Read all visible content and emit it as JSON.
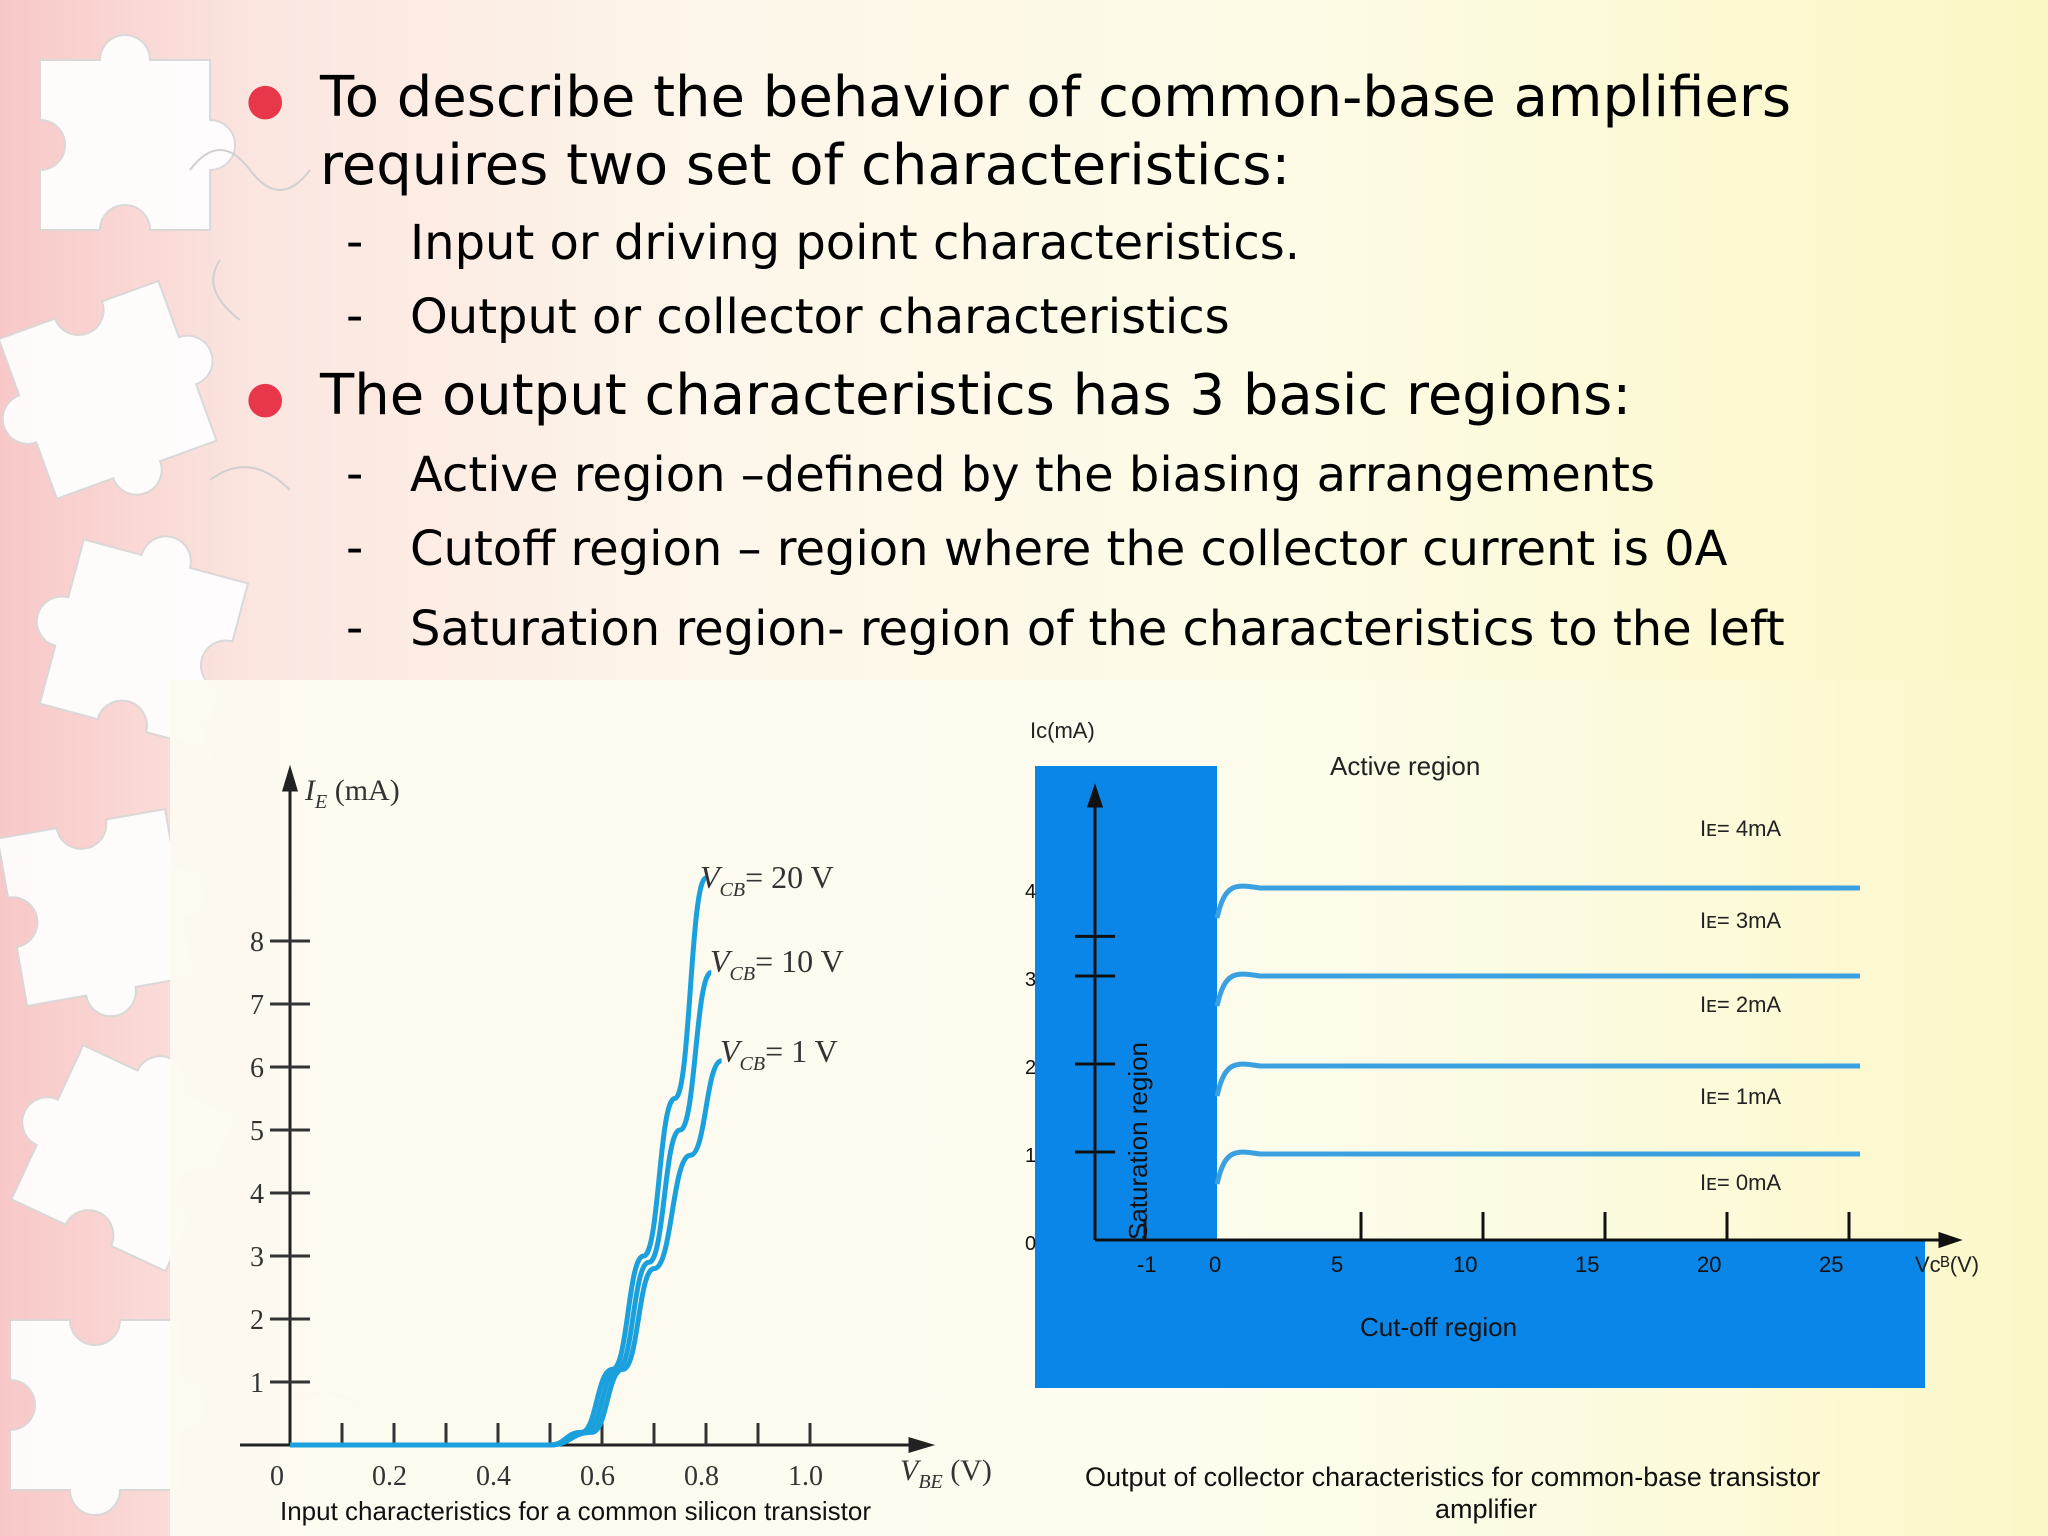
{
  "bullets": [
    {
      "text_line1": "To describe the behavior of common-base amplifiers",
      "text_line2": "requires two set of characteristics:",
      "subs": [
        "Input or driving point characteristics.",
        "Output or collector characteristics"
      ]
    },
    {
      "text_line1": "The output characteristics has 3 basic regions:",
      "subs": [
        "Active region –defined by the biasing arrangements",
        "Cutoff region – region where the collector current is 0A",
        "Saturation region- region of the characteristics to the left"
      ]
    }
  ],
  "colors": {
    "bullet": "#e8364a",
    "curve": "#1aa0dc",
    "region": "#0a86e8",
    "region_line": "#3aa0e0"
  },
  "chart_data": [
    {
      "type": "line",
      "ylabel": "I_E (mA)",
      "xlabel": "V_BE (V)",
      "x_ticks": [
        "0",
        "0.2",
        "0.4",
        "0.6",
        "0.8",
        "1.0"
      ],
      "y_ticks": [
        "1",
        "2",
        "3",
        "4",
        "5",
        "6",
        "7",
        "8"
      ],
      "xlim": [
        0,
        1.2
      ],
      "ylim": [
        0,
        9
      ],
      "series": [
        {
          "name": "V_CB = 20 V",
          "label_main": "V",
          "label_sub": "CB",
          "label_rest": "= 20 V",
          "points": [
            [
              0,
              0
            ],
            [
              0.5,
              0
            ],
            [
              0.56,
              0.2
            ],
            [
              0.62,
              1.2
            ],
            [
              0.68,
              3.0
            ],
            [
              0.74,
              5.5
            ],
            [
              0.8,
              9.0
            ]
          ]
        },
        {
          "name": "V_CB = 10 V",
          "label_main": "V",
          "label_sub": "CB",
          "label_rest": "= 10 V",
          "points": [
            [
              0,
              0
            ],
            [
              0.5,
              0
            ],
            [
              0.57,
              0.2
            ],
            [
              0.63,
              1.2
            ],
            [
              0.69,
              2.9
            ],
            [
              0.75,
              5.0
            ],
            [
              0.81,
              7.5
            ]
          ]
        },
        {
          "name": "V_CB = 1 V",
          "label_main": "V",
          "label_sub": "CB",
          "label_rest": "= 1 V",
          "points": [
            [
              0,
              0
            ],
            [
              0.5,
              0
            ],
            [
              0.58,
              0.2
            ],
            [
              0.64,
              1.2
            ],
            [
              0.7,
              2.8
            ],
            [
              0.77,
              4.6
            ],
            [
              0.83,
              6.1
            ]
          ]
        }
      ],
      "caption": "Input characteristics for a common silicon transistor"
    },
    {
      "type": "line",
      "ylabel": "Iᴄ(mA)",
      "xlabel": "Vᴄᴮ(V)",
      "x_ticks": [
        "-1",
        "0",
        "5",
        "10",
        "15",
        "20",
        "25"
      ],
      "y_ticks": [
        "0",
        "1",
        "2",
        "3",
        "4"
      ],
      "regions": {
        "active": "Active region",
        "saturation": "Saturation region",
        "cutoff": "Cut-off region"
      },
      "series": [
        {
          "name": "Iᴇ= 4mA",
          "level": 4
        },
        {
          "name": "Iᴇ= 3mA",
          "level": 3
        },
        {
          "name": "Iᴇ= 2mA",
          "level": 2
        },
        {
          "name": "Iᴇ= 1mA",
          "level": 1
        },
        {
          "name": "Iᴇ= 0mA",
          "level": 0
        }
      ],
      "caption_line1": "Output of collector characteristics for common-base transistor",
      "caption_line2": "amplifier"
    }
  ]
}
